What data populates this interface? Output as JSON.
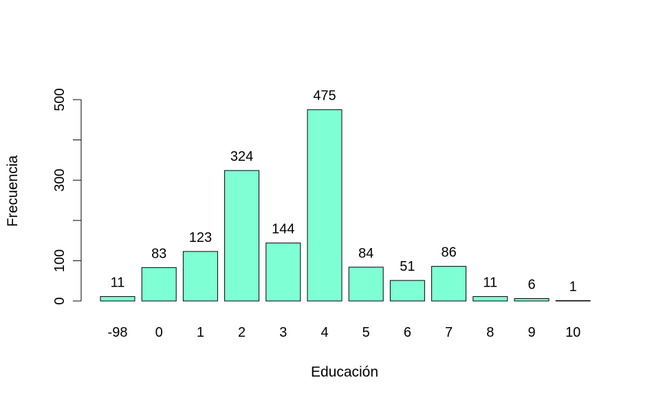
{
  "chart_data": {
    "type": "bar",
    "categories": [
      "-98",
      "0",
      "1",
      "2",
      "3",
      "4",
      "5",
      "6",
      "7",
      "8",
      "9",
      "10"
    ],
    "values": [
      11,
      83,
      123,
      324,
      144,
      475,
      84,
      51,
      86,
      11,
      6,
      1
    ],
    "data_labels": [
      "11",
      "83",
      "123",
      "324",
      "144",
      "475",
      "84",
      "51",
      "86",
      "11",
      "6",
      "1"
    ],
    "xlabel": "Educación",
    "ylabel": "Frecuencia",
    "ylim": [
      0,
      500
    ],
    "yticks": [
      0,
      100,
      200,
      300,
      400,
      500
    ],
    "ytick_labels": [
      "0",
      "100",
      "",
      "300",
      "",
      "500"
    ],
    "bar_color": "#7fffd4",
    "grid": false
  }
}
